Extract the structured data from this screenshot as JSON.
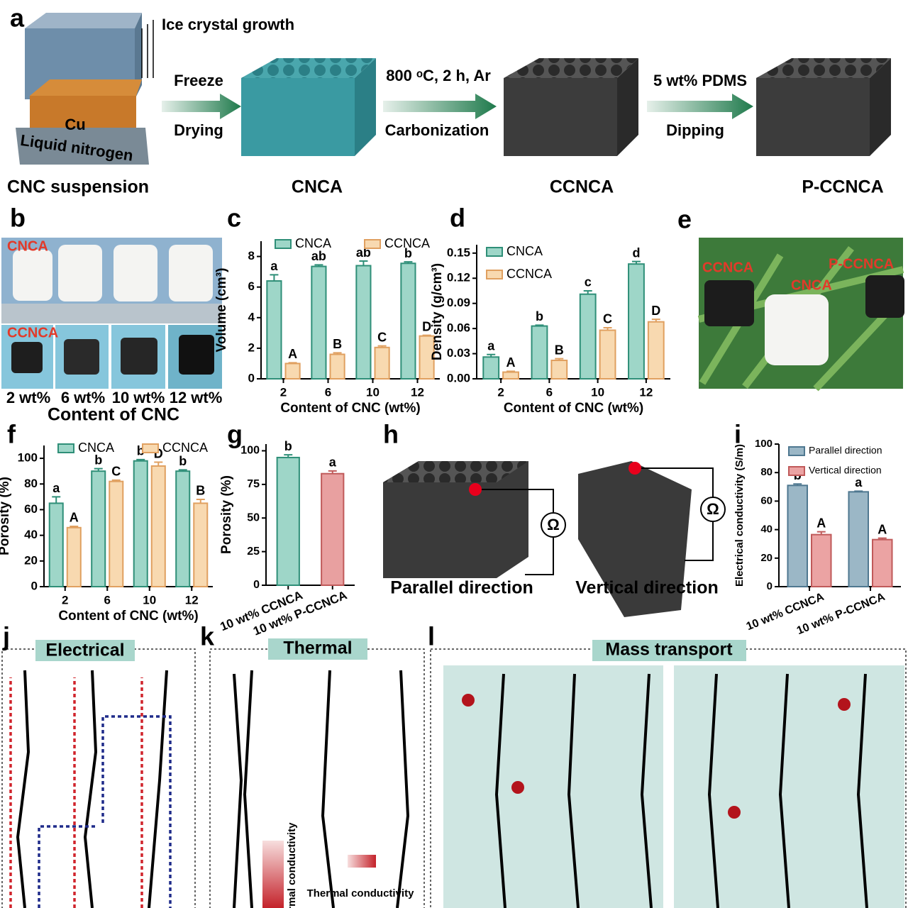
{
  "labels": [
    "a",
    "b",
    "c",
    "d",
    "e",
    "f",
    "g",
    "h",
    "i",
    "j",
    "k",
    "l"
  ],
  "a": {
    "growth": "Ice crystal growth",
    "cu": "Cu",
    "base": "Liquid nitrogen",
    "step1_top": "Freeze",
    "step1_bottom": "Drying",
    "step2_top": "800 ᵒC, 2 h, Ar",
    "step2_bottom": "Carbonization",
    "step3_top": "5 wt% PDMS",
    "step3_bottom": "Dipping",
    "stages": [
      "CNC suspension",
      "CNCA",
      "CCNCA",
      "P-CCNCA"
    ]
  },
  "b": {
    "top": "CNCA",
    "bottom": "CCNCA",
    "samples": [
      "2 wt%",
      "6 wt%",
      "10 wt%",
      "12 wt%"
    ],
    "xlabel": "Content of CNC"
  },
  "e": {
    "labels": [
      "CCNCA",
      "CNCA",
      "P-CCNCA"
    ]
  },
  "h": {
    "captions": [
      "Parallel direction",
      "Vertical direction"
    ],
    "symbol": "Ω"
  },
  "j": {
    "title": "Electrical"
  },
  "k": {
    "title": "Thermal",
    "arrow_label": "Thermal conductivity"
  },
  "l": {
    "title": "Mass transport"
  },
  "chart_data": [
    {
      "type": "bar",
      "ylabel": "Volume (cm³)",
      "xlabel": "Content of CNC (wt%)",
      "categories": [
        "2",
        "6",
        "10",
        "12"
      ],
      "ylim": [
        0,
        9
      ],
      "yticks": [
        0,
        2,
        4,
        6,
        8
      ],
      "legend": "top",
      "series": [
        {
          "name": "CNCA",
          "color": "#9ed6c8",
          "edge": "#2f8f78",
          "values": [
            6.4,
            7.35,
            7.4,
            7.55
          ],
          "errors": [
            0.4,
            0.1,
            0.3,
            0.1
          ],
          "letters": [
            "a",
            "ab",
            "ab",
            "b"
          ]
        },
        {
          "name": "CCNCA",
          "color": "#f8d9b0",
          "edge": "#e0a060",
          "values": [
            1.0,
            1.6,
            2.05,
            2.8
          ],
          "errors": [
            0.05,
            0.1,
            0.1,
            0.05
          ],
          "letters": [
            "A",
            "B",
            "C",
            "D"
          ]
        }
      ]
    },
    {
      "type": "bar",
      "ylabel": "Density (g/cm³)",
      "xlabel": "Content of CNC (wt%)",
      "categories": [
        "2",
        "6",
        "10",
        "12"
      ],
      "ylim": [
        0,
        0.16
      ],
      "yticks": [
        {
          "value": 0,
          "label": "0.00"
        },
        0.03,
        0.06,
        0.09,
        0.12,
        0.15
      ],
      "legend": "upper left",
      "series": [
        {
          "name": "CNCA",
          "color": "#9ed6c8",
          "edge": "#2f8f78",
          "values": [
            0.026,
            0.063,
            0.101,
            0.137
          ],
          "errors": [
            0.003,
            0.001,
            0.004,
            0.003
          ],
          "letters": [
            "a",
            "b",
            "c",
            "d"
          ]
        },
        {
          "name": "CCNCA",
          "color": "#f8d9b0",
          "edge": "#e0a060",
          "values": [
            0.008,
            0.022,
            0.058,
            0.068
          ],
          "errors": [
            0.001,
            0.002,
            0.003,
            0.003
          ],
          "letters": [
            "A",
            "B",
            "C",
            "D"
          ]
        }
      ]
    },
    {
      "type": "bar",
      "ylabel": "Porosity (%)",
      "xlabel": "Content of CNC (wt%)",
      "categories": [
        "2",
        "6",
        "10",
        "12"
      ],
      "ylim": [
        0,
        110
      ],
      "yticks": [
        0,
        20,
        40,
        60,
        80,
        100
      ],
      "legend": "top",
      "series": [
        {
          "name": "CNCA",
          "color": "#9ed6c8",
          "edge": "#2f8f78",
          "values": [
            65,
            90,
            98,
            90
          ],
          "errors": [
            5,
            2,
            1,
            1
          ],
          "letters": [
            "a",
            "b",
            "b",
            "b"
          ]
        },
        {
          "name": "CCNCA",
          "color": "#f8d9b0",
          "edge": "#e0a060",
          "values": [
            46,
            82,
            94,
            65
          ],
          "errors": [
            1,
            1,
            3,
            3
          ],
          "letters": [
            "A",
            "C",
            "D",
            "B"
          ]
        }
      ]
    },
    {
      "type": "bar",
      "ylabel": "Porosity (%)",
      "categories": [
        "10 wt% CCNCA",
        "10 wt% P-CCNCA"
      ],
      "ylim": [
        0,
        105
      ],
      "yticks": [
        0,
        25,
        50,
        75,
        100
      ],
      "values": [
        95,
        83
      ],
      "errors": [
        2,
        2
      ],
      "letters": [
        "b",
        "a"
      ],
      "colors": [
        "#9ed6c8",
        "#e8a0a0"
      ],
      "edges": [
        "#2f8f78",
        "#c05a5a"
      ]
    },
    {
      "type": "bar",
      "ylabel": "Electrical conductivity (S/m)",
      "categories": [
        "10 wt% CCNCA",
        "10 wt% P-CCNCA"
      ],
      "ylim": [
        0,
        100
      ],
      "yticks": [
        0,
        20,
        40,
        60,
        80,
        100
      ],
      "legend": "upper left",
      "series": [
        {
          "name": "Parallel direction",
          "color": "#9bb7c6",
          "edge": "#4f7890",
          "values": [
            71,
            66.5
          ],
          "errors": [
            1,
            0.5
          ],
          "letters": [
            "b",
            "a"
          ]
        },
        {
          "name": "Vertical direction",
          "color": "#eba3a3",
          "edge": "#c05a5a",
          "values": [
            36.5,
            33
          ],
          "errors": [
            2,
            1
          ],
          "letters": [
            "A",
            "A"
          ]
        }
      ]
    }
  ]
}
